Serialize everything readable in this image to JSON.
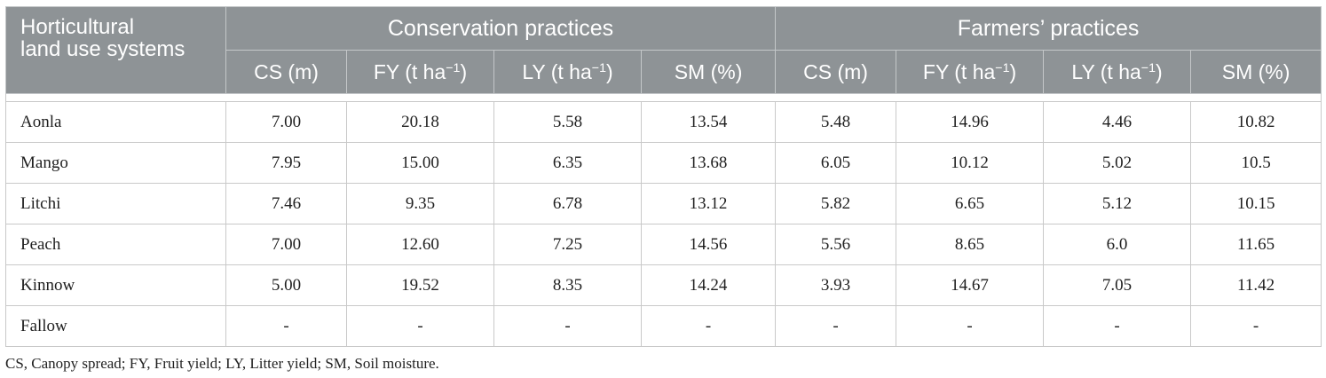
{
  "table": {
    "row_header": [
      "Horticultural",
      "land use systems"
    ],
    "groups": [
      "Conservation practices",
      "Farmers’ practices"
    ],
    "sub": {
      "cs": "CS (m)",
      "fy_prefix": "FY (t ha",
      "ly_prefix": "LY (t ha",
      "exponent": "−1",
      "close": ")",
      "sm": "SM (%)"
    },
    "rows": [
      {
        "name": "Aonla",
        "values": [
          "7.00",
          "20.18",
          "5.58",
          "13.54",
          "5.48",
          "14.96",
          "4.46",
          "10.82"
        ]
      },
      {
        "name": "Mango",
        "values": [
          "7.95",
          "15.00",
          "6.35",
          "13.68",
          "6.05",
          "10.12",
          "5.02",
          "10.5"
        ]
      },
      {
        "name": "Litchi",
        "values": [
          "7.46",
          "9.35",
          "6.78",
          "13.12",
          "5.82",
          "6.65",
          "5.12",
          "10.15"
        ]
      },
      {
        "name": "Peach",
        "values": [
          "7.00",
          "12.60",
          "7.25",
          "14.56",
          "5.56",
          "8.65",
          "6.0",
          "11.65"
        ]
      },
      {
        "name": "Kinnow",
        "values": [
          "5.00",
          "19.52",
          "8.35",
          "14.24",
          "3.93",
          "14.67",
          "7.05",
          "11.42"
        ]
      },
      {
        "name": "Fallow",
        "values": [
          "-",
          "-",
          "-",
          "-",
          "-",
          "-",
          "-",
          "-"
        ]
      }
    ]
  },
  "footnote": "CS, Canopy spread; FY, Fruit yield; LY, Litter yield; SM, Soil moisture.",
  "colors": {
    "header_bg": "#8e9396",
    "header_text": "#ffffff",
    "border": "#c9c9c9"
  }
}
